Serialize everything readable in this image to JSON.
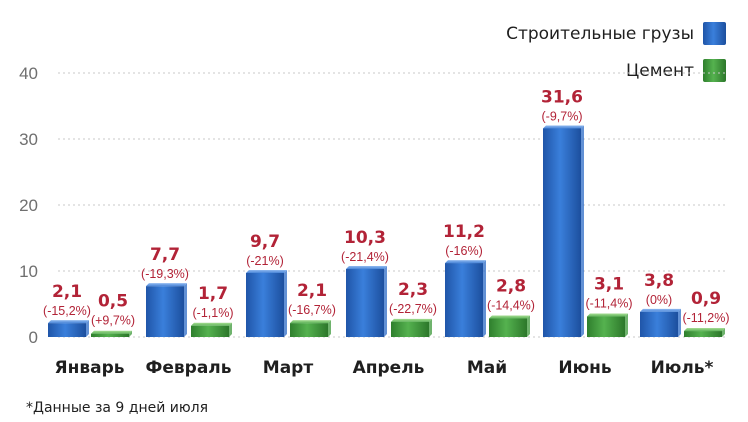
{
  "chart_data": {
    "type": "bar",
    "categories": [
      "Январь",
      "Февраль",
      "Март",
      "Апрель",
      "Май",
      "Июнь",
      "Июль*"
    ],
    "series": [
      {
        "name": "Строительные грузы",
        "color": "#2d6cc7",
        "values": [
          2.1,
          7.7,
          9.7,
          10.3,
          11.2,
          31.6,
          3.8
        ],
        "value_labels": [
          "2,1",
          "7,7",
          "9,7",
          "10,3",
          "11,2",
          "31,6",
          "3,8"
        ],
        "change_labels": [
          "(-15,2%)",
          "(-19,3%)",
          "(-21%)",
          "(-21,4%)",
          "(-16%)",
          "(-9,7%)",
          "(0%)"
        ]
      },
      {
        "name": "Цемент",
        "color": "#3f9a3c",
        "values": [
          0.5,
          1.7,
          2.1,
          2.3,
          2.8,
          3.1,
          0.9
        ],
        "value_labels": [
          "0,5",
          "1,7",
          "2,1",
          "2,3",
          "2,8",
          "3,1",
          "0,9"
        ],
        "change_labels": [
          "(+9,7%)",
          "(-1,1%)",
          "(-16,7%)",
          "(-22,7%)",
          "(-14,4%)",
          "(-11,4%)",
          "(-11,2%)"
        ]
      }
    ],
    "ylim": [
      0,
      40
    ],
    "yticks": [
      0,
      10,
      20,
      30,
      40
    ],
    "grid": true,
    "legend_position": "top-right",
    "footnote": "*Данные за 9 дней июля"
  }
}
